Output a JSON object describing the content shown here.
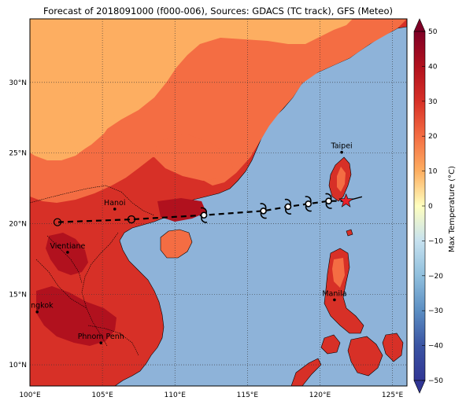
{
  "title": "Forecast of 2018091000 (f000-006), Sources: GDACS (TC track), GFS (Meteo)",
  "map": {
    "lon_range": [
      100,
      126
    ],
    "lat_range": [
      8.5,
      34.5
    ],
    "lon_ticks": [
      100,
      105,
      110,
      115,
      120,
      125
    ],
    "lat_ticks": [
      10,
      15,
      20,
      25,
      30
    ],
    "lon_tick_labels": [
      "100°E",
      "105°E",
      "110°E",
      "115°E",
      "120°E",
      "125°E"
    ],
    "lat_tick_labels": [
      "10°N",
      "15°N",
      "20°N",
      "25°N",
      "30°N"
    ],
    "ocean_color": "#8eb3d9",
    "gridlines": true
  },
  "cities": [
    {
      "name": "Taipei",
      "lon": 121.5,
      "lat": 25.05
    },
    {
      "name": "Hanoi",
      "lon": 105.85,
      "lat": 21.03
    },
    {
      "name": "Vientiane",
      "lon": 102.6,
      "lat": 17.97
    },
    {
      "name": "Manila",
      "lon": 121.0,
      "lat": 14.6
    },
    {
      "name": "Bangkok",
      "lon": 100.5,
      "lat": 13.75
    },
    {
      "name": "Phnom Penh",
      "lon": 104.9,
      "lat": 11.55
    }
  ],
  "track": {
    "points": [
      {
        "lon": 121.8,
        "lat": 21.6,
        "symbol": "star"
      },
      {
        "lon": 120.6,
        "lat": 21.6,
        "symbol": "typhoon"
      },
      {
        "lon": 119.2,
        "lat": 21.4,
        "symbol": "typhoon"
      },
      {
        "lon": 117.8,
        "lat": 21.2,
        "symbol": "typhoon"
      },
      {
        "lon": 116.1,
        "lat": 20.9,
        "symbol": "typhoon"
      },
      {
        "lon": 112.0,
        "lat": 20.6,
        "symbol": "typhoon"
      },
      {
        "lon": 107.0,
        "lat": 20.3,
        "symbol": "circle"
      },
      {
        "lon": 101.9,
        "lat": 20.1,
        "symbol": "circle"
      }
    ],
    "heading_line": {
      "lon": 122.9,
      "lat": 21.9
    }
  },
  "colorbar": {
    "label": "Max Temperature (°C)",
    "ticks": [
      50,
      40,
      30,
      20,
      10,
      0,
      -10,
      -20,
      -30,
      -40,
      -50
    ],
    "tick_labels": [
      "50",
      "40",
      "30",
      "20",
      "10",
      "0",
      "−10",
      "−20",
      "−30",
      "−40",
      "−50"
    ],
    "colors": [
      "#7f0026",
      "#b1111e",
      "#d73027",
      "#f46d43",
      "#fdae61",
      "#fee090",
      "#ffffbf",
      "#e0f3f8",
      "#c6e1ef",
      "#abd9e9",
      "#8fbfdd",
      "#74add1",
      "#5b8ec3",
      "#4575b4",
      "#3a54a3",
      "#313695"
    ]
  },
  "colors": {
    "temp_35_40": "#b1111e",
    "temp_30_35": "#d73027",
    "temp_25_30": "#f46d43",
    "temp_20_25": "#fdae61"
  }
}
